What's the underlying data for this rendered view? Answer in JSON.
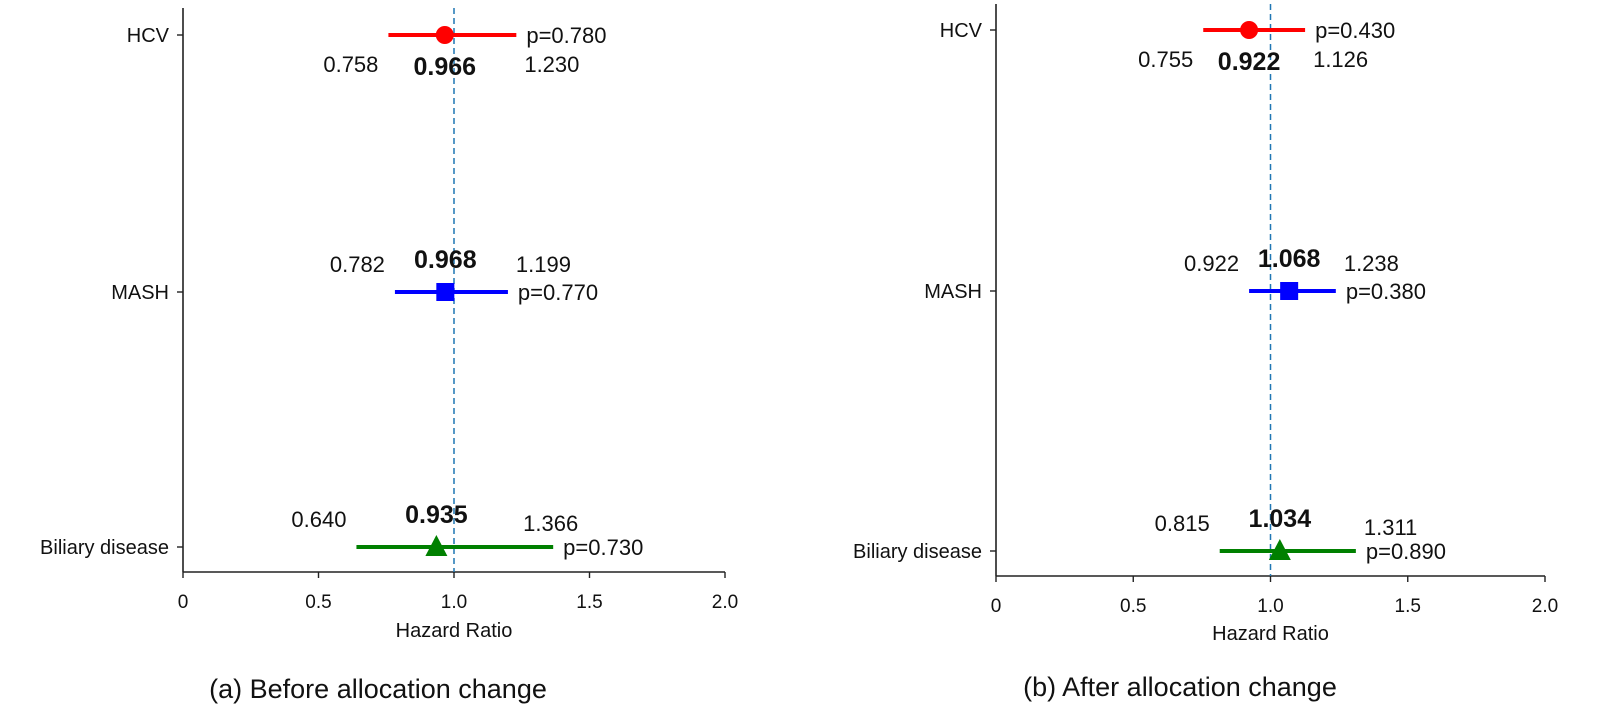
{
  "chart_data": [
    {
      "type": "forest",
      "title": "(a) Before allocation change",
      "xlabel": "Hazard Ratio",
      "ylabel": "",
      "xlim": [
        0,
        2.0
      ],
      "xticks": [
        "0",
        "0.5",
        "1.0",
        "1.5",
        "2.0"
      ],
      "xtick_values": [
        0,
        0.5,
        1.0,
        1.5,
        2.0
      ],
      "reference_line": 1.0,
      "grid": false,
      "rows": [
        {
          "label": "HCV",
          "hr": 0.966,
          "lower": 0.758,
          "upper": 1.23,
          "hr_text": "0.966",
          "lower_text": "0.758",
          "upper_text": "1.230",
          "p_text": "p=0.780",
          "color": "#ff0000",
          "marker": "circle",
          "labels_below": true
        },
        {
          "label": "MASH",
          "hr": 0.968,
          "lower": 0.782,
          "upper": 1.199,
          "hr_text": "0.968",
          "lower_text": "0.782",
          "upper_text": "1.199",
          "p_text": "p=0.770",
          "color": "#0000ff",
          "marker": "square",
          "labels_below": false
        },
        {
          "label": "Biliary disease",
          "hr": 0.935,
          "lower": 0.64,
          "upper": 1.366,
          "hr_text": "0.935",
          "lower_text": "0.640",
          "upper_text": "1.366",
          "p_text": "p=0.730",
          "color": "#008000",
          "marker": "triangle",
          "labels_below": false
        }
      ]
    },
    {
      "type": "forest",
      "title": "(b) After allocation change",
      "xlabel": "Hazard Ratio",
      "ylabel": "",
      "xlim": [
        0,
        2.0
      ],
      "xticks": [
        "0",
        "0.5",
        "1.0",
        "1.5",
        "2.0"
      ],
      "xtick_values": [
        0,
        0.5,
        1.0,
        1.5,
        2.0
      ],
      "reference_line": 1.0,
      "grid": false,
      "rows": [
        {
          "label": "HCV",
          "hr": 0.922,
          "lower": 0.755,
          "upper": 1.126,
          "hr_text": "0.922",
          "lower_text": "0.755",
          "upper_text": "1.126",
          "p_text": "p=0.430",
          "color": "#ff0000",
          "marker": "circle",
          "labels_below": true
        },
        {
          "label": "MASH",
          "hr": 1.068,
          "lower": 0.922,
          "upper": 1.238,
          "hr_text": "1.068",
          "lower_text": "0.922",
          "upper_text": "1.238",
          "p_text": "p=0.380",
          "color": "#0000ff",
          "marker": "square",
          "labels_below": false
        },
        {
          "label": "Biliary disease",
          "hr": 1.034,
          "lower": 0.815,
          "upper": 1.311,
          "hr_text": "1.034",
          "lower_text": "0.815",
          "upper_text": "1.311",
          "p_text": "p=0.890",
          "color": "#008000",
          "marker": "triangle",
          "labels_below": false
        }
      ]
    }
  ],
  "colors": {
    "reference_line": "#1f77b4",
    "axis": "#222222"
  }
}
